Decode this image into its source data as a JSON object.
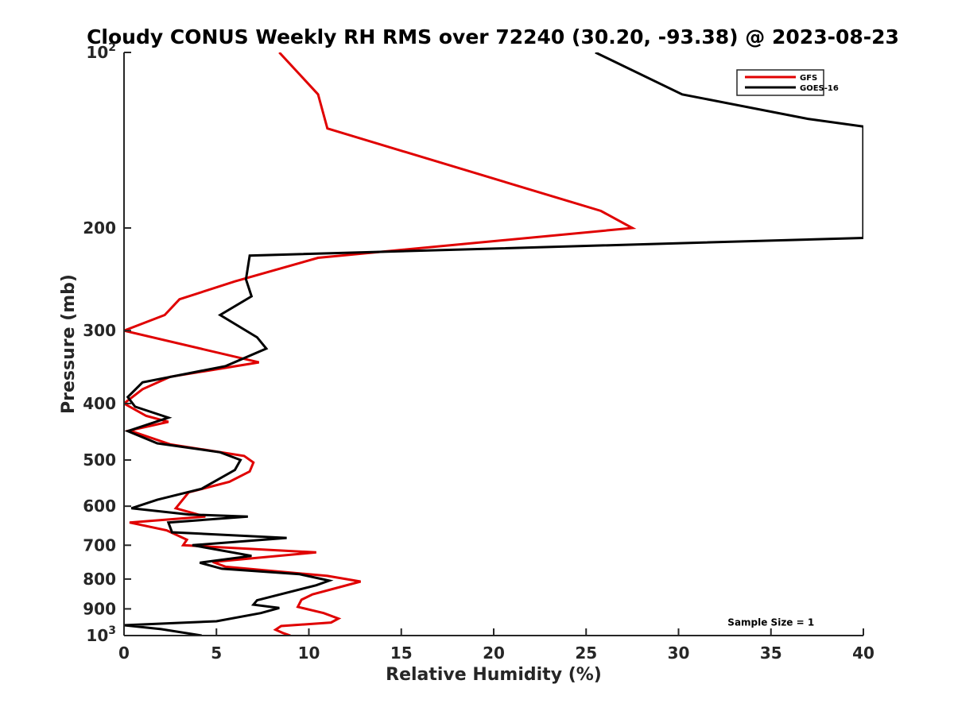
{
  "chart_data": {
    "type": "line",
    "title": "Cloudy CONUS Weekly RH RMS over 72240 (30.20, -93.38) @ 2023-08-23",
    "xlabel": "Relative Humidity (%)",
    "ylabel": "Pressure (mb)",
    "xlim": [
      0,
      40
    ],
    "ylim": [
      100,
      1000
    ],
    "yscale": "log",
    "yreverse": true,
    "grid": false,
    "x_ticks": [
      "0",
      "5",
      "10",
      "15",
      "20",
      "25",
      "30",
      "35",
      "40"
    ],
    "x_tick_values": [
      0,
      5,
      10,
      15,
      20,
      25,
      30,
      35,
      40
    ],
    "y_ticks": [
      {
        "value": 100,
        "base": "10",
        "exp": "2"
      },
      {
        "value": 200,
        "base": "200",
        "exp": ""
      },
      {
        "value": 300,
        "base": "300",
        "exp": ""
      },
      {
        "value": 400,
        "base": "400",
        "exp": ""
      },
      {
        "value": 500,
        "base": "500",
        "exp": ""
      },
      {
        "value": 600,
        "base": "600",
        "exp": ""
      },
      {
        "value": 700,
        "base": "700",
        "exp": ""
      },
      {
        "value": 800,
        "base": "800",
        "exp": ""
      },
      {
        "value": 900,
        "base": "900",
        "exp": ""
      },
      {
        "value": 1000,
        "base": "10",
        "exp": "3"
      }
    ],
    "legend_position": "top-right",
    "series": [
      {
        "name": "GFS",
        "color": "#e00000",
        "points": [
          [
            8.4,
            100
          ],
          [
            10.5,
            118
          ],
          [
            11.0,
            135
          ],
          [
            25.8,
            187
          ],
          [
            27.5,
            200
          ],
          [
            10.5,
            225
          ],
          [
            6.0,
            247
          ],
          [
            3.0,
            265
          ],
          [
            2.2,
            282
          ],
          [
            0.0,
            300
          ],
          [
            7.3,
            340
          ],
          [
            2.5,
            360
          ],
          [
            1.0,
            378
          ],
          [
            0.0,
            400
          ],
          [
            1.2,
            420
          ],
          [
            2.4,
            430
          ],
          [
            0.3,
            445
          ],
          [
            2.5,
            470
          ],
          [
            6.5,
            492
          ],
          [
            7.0,
            505
          ],
          [
            6.8,
            523
          ],
          [
            5.7,
            545
          ],
          [
            3.5,
            568
          ],
          [
            2.8,
            605
          ],
          [
            4.4,
            625
          ],
          [
            0.3,
            640
          ],
          [
            2.3,
            660
          ],
          [
            3.4,
            685
          ],
          [
            3.2,
            700
          ],
          [
            10.4,
            720
          ],
          [
            4.8,
            748
          ],
          [
            5.5,
            762
          ],
          [
            11.0,
            790
          ],
          [
            12.8,
            808
          ],
          [
            10.2,
            850
          ],
          [
            9.6,
            868
          ],
          [
            9.4,
            893
          ],
          [
            10.8,
            915
          ],
          [
            11.6,
            935
          ],
          [
            11.2,
            950
          ],
          [
            8.5,
            963
          ],
          [
            8.2,
            977
          ],
          [
            8.6,
            990
          ],
          [
            9.0,
            1000
          ]
        ]
      },
      {
        "name": "GOES-16",
        "color": "#000000",
        "points": [
          [
            25.5,
            100
          ],
          [
            30.2,
            118
          ],
          [
            37.0,
            130
          ],
          [
            40.0,
            134
          ],
          [
            40.0,
            208
          ],
          [
            6.8,
            223
          ],
          [
            6.6,
            245
          ],
          [
            6.9,
            262
          ],
          [
            5.2,
            282
          ],
          [
            7.2,
            308
          ],
          [
            7.7,
            322
          ],
          [
            5.5,
            345
          ],
          [
            1.0,
            368
          ],
          [
            0.2,
            390
          ],
          [
            0.6,
            405
          ],
          [
            2.4,
            423
          ],
          [
            0.2,
            446
          ],
          [
            1.8,
            468
          ],
          [
            5.2,
            485
          ],
          [
            6.3,
            500
          ],
          [
            6.0,
            520
          ],
          [
            4.2,
            560
          ],
          [
            1.8,
            585
          ],
          [
            0.4,
            605
          ],
          [
            3.5,
            620
          ],
          [
            6.7,
            625
          ],
          [
            2.4,
            640
          ],
          [
            2.6,
            665
          ],
          [
            8.8,
            680
          ],
          [
            3.7,
            700
          ],
          [
            6.9,
            730
          ],
          [
            4.1,
            750
          ],
          [
            5.3,
            768
          ],
          [
            9.5,
            785
          ],
          [
            11.1,
            805
          ],
          [
            10.4,
            820
          ],
          [
            7.2,
            870
          ],
          [
            7.0,
            885
          ],
          [
            8.4,
            897
          ],
          [
            7.4,
            915
          ],
          [
            5.0,
            945
          ],
          [
            0.0,
            960
          ],
          [
            2.0,
            975
          ],
          [
            4.2,
            1000
          ]
        ]
      }
    ],
    "annotations": [
      {
        "text": "Sample Size = 1",
        "x": 35,
        "y": 950
      }
    ]
  }
}
